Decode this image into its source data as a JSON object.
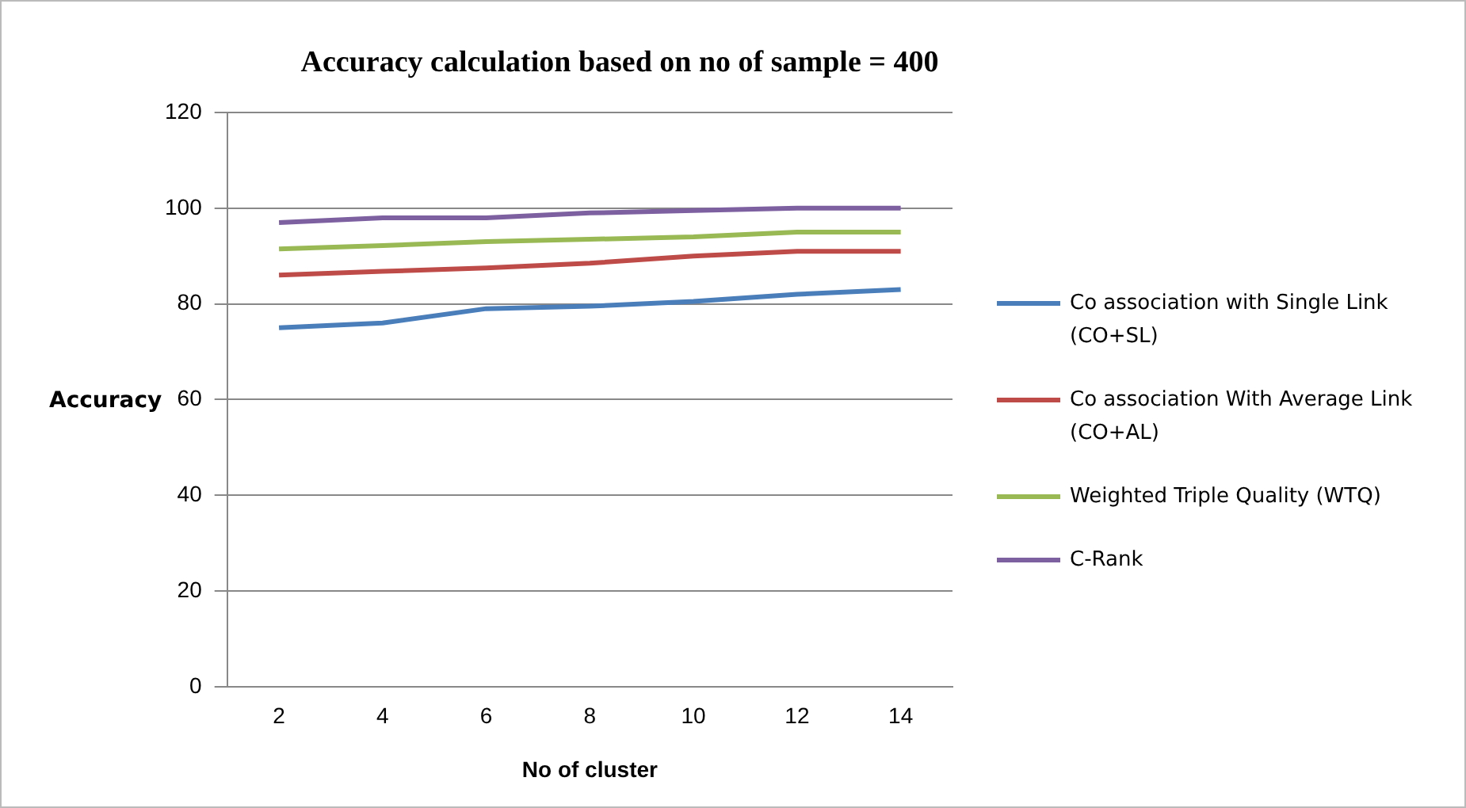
{
  "chart_data": {
    "type": "line",
    "title": "Accuracy calculation based on no of sample = 400",
    "xlabel": "No of cluster",
    "ylabel": "Accuracy",
    "categories": [
      "2",
      "4",
      "6",
      "8",
      "10",
      "12",
      "14"
    ],
    "series": [
      {
        "name": "Co association with Single Link (CO+SL)",
        "color": "#4a7ebb",
        "values": [
          75,
          76,
          79,
          79.5,
          80.5,
          82,
          83
        ]
      },
      {
        "name": "Co association With Average Link (CO+AL)",
        "color": "#be4b48",
        "values": [
          86,
          86.8,
          87.5,
          88.5,
          90,
          91,
          91
        ]
      },
      {
        "name": "Weighted Triple Quality (WTQ)",
        "color": "#98b954",
        "values": [
          91.5,
          92.2,
          93,
          93.5,
          94,
          95,
          95
        ]
      },
      {
        "name": "C-Rank",
        "color": "#7d60a0",
        "values": [
          97,
          98,
          98,
          99,
          99.5,
          100,
          100
        ]
      }
    ],
    "ylim": [
      0,
      120
    ],
    "yticks": [
      0,
      20,
      40,
      60,
      80,
      100,
      120
    ],
    "grid": "y",
    "legend": "right",
    "marker": "none",
    "line_style": "solid"
  }
}
